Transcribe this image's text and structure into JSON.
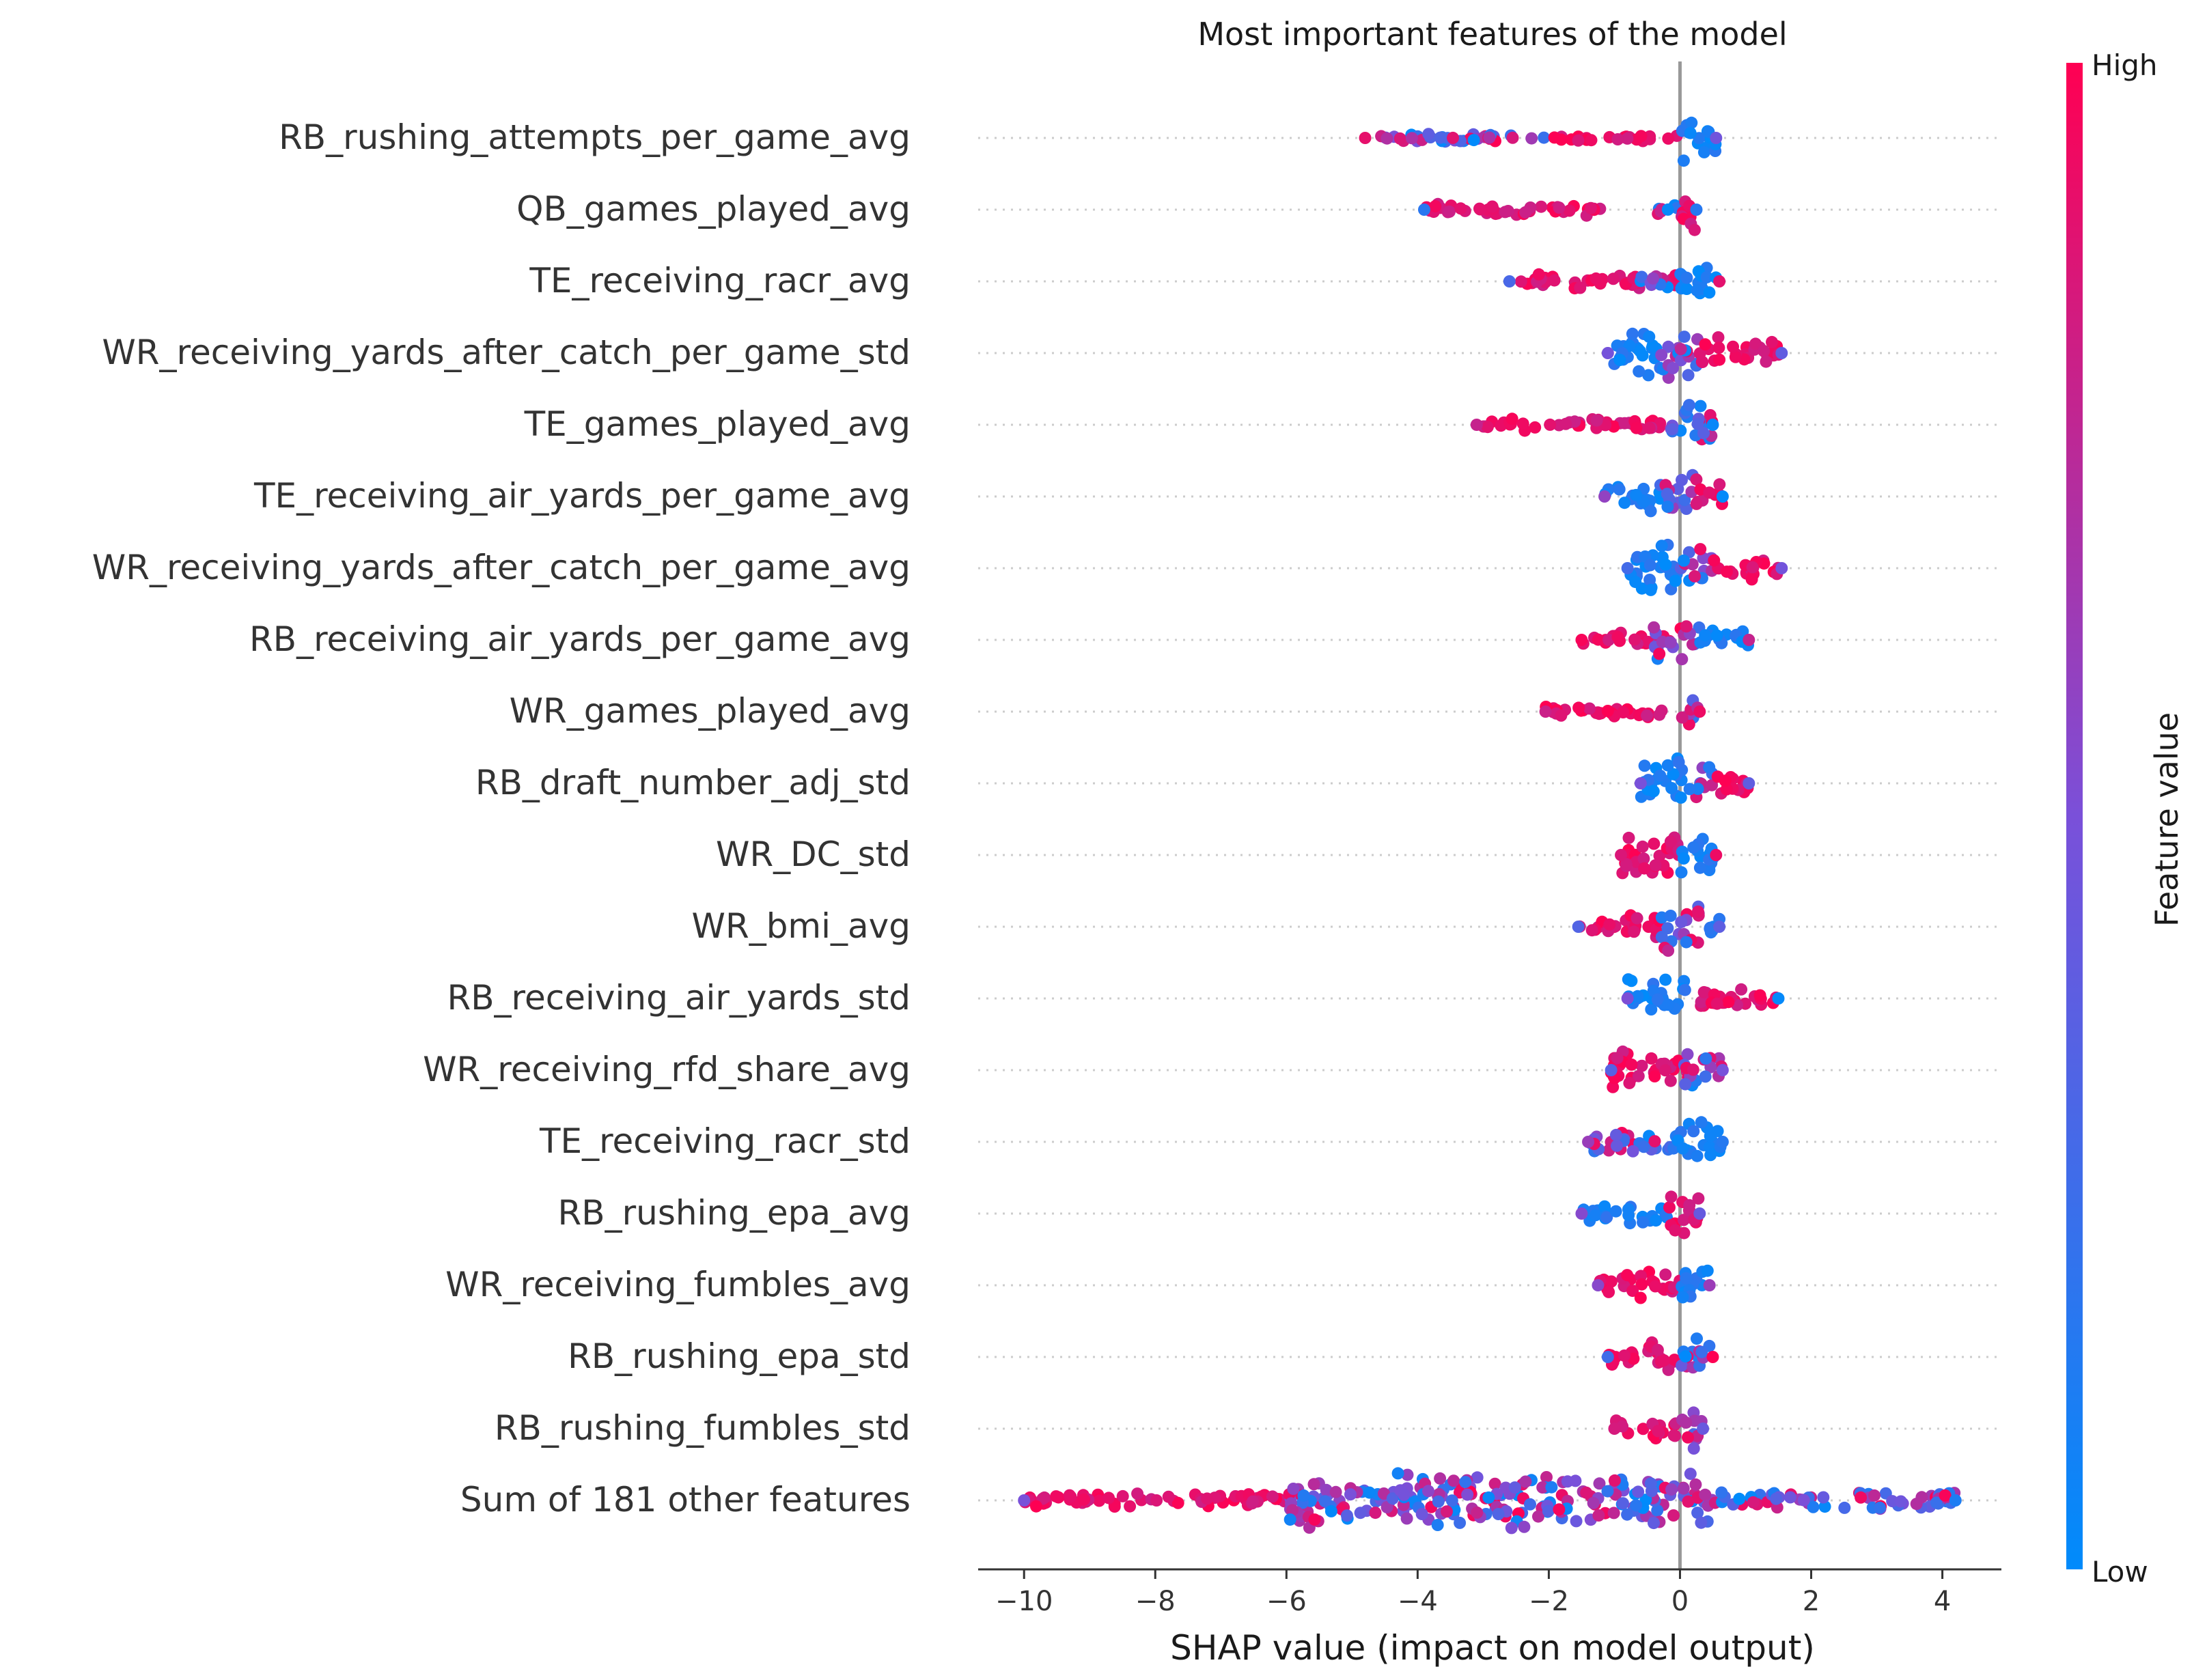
{
  "chart_data": {
    "type": "scatter",
    "subtype": "shap-beeswarm",
    "title": "Most important features of the model",
    "xlabel": "SHAP value (impact on model output)",
    "xlim": [
      -10.7,
      4.9
    ],
    "xticks": [
      -10,
      -8,
      -6,
      -4,
      -2,
      0,
      2,
      4
    ],
    "xtick_labels": [
      "−10",
      "−8",
      "−6",
      "−4",
      "−2",
      "0",
      "2",
      "4"
    ],
    "colorbar": {
      "label": "Feature value",
      "high_label": "High",
      "low_label": "Low",
      "high_color": "#ff0052",
      "low_color": "#008bfb"
    },
    "features": [
      {
        "name": "RB_rushing_attempts_per_game_avg",
        "min": -4.8,
        "max": 0.55,
        "segments": [
          [
            -4.8,
            -2.0,
            0.18,
            "mix"
          ],
          [
            -2.0,
            0.0,
            0.12,
            "high"
          ],
          [
            0.0,
            0.55,
            0.9,
            "low"
          ]
        ]
      },
      {
        "name": "QB_games_played_avg",
        "min": -3.9,
        "max": 0.25,
        "segments": [
          [
            -3.9,
            -1.2,
            0.22,
            "high"
          ],
          [
            -0.5,
            0.0,
            0.2,
            "mix"
          ],
          [
            0.0,
            0.25,
            0.8,
            "high"
          ]
        ]
      },
      {
        "name": "TE_receiving_racr_avg",
        "min": -2.6,
        "max": 0.6,
        "segments": [
          [
            -2.6,
            -0.6,
            0.25,
            "high"
          ],
          [
            -0.6,
            0.0,
            0.4,
            "mix"
          ],
          [
            0.0,
            0.6,
            0.7,
            "low"
          ]
        ]
      },
      {
        "name": "WR_receiving_yards_after_catch_per_game_std",
        "min": -1.1,
        "max": 1.55,
        "segments": [
          [
            -1.1,
            -0.3,
            0.9,
            "low"
          ],
          [
            -0.3,
            0.3,
            0.9,
            "mix"
          ],
          [
            0.3,
            1.55,
            0.55,
            "high"
          ]
        ]
      },
      {
        "name": "TE_games_played_avg",
        "min": -3.1,
        "max": 0.5,
        "segments": [
          [
            -3.1,
            -0.2,
            0.22,
            "high"
          ],
          [
            -0.2,
            0.5,
            0.8,
            "mix"
          ]
        ]
      },
      {
        "name": "TE_receiving_air_yards_per_game_avg",
        "min": -1.15,
        "max": 0.65,
        "segments": [
          [
            -1.15,
            -0.3,
            0.6,
            "low"
          ],
          [
            -0.3,
            0.2,
            0.85,
            "mix"
          ],
          [
            0.2,
            0.65,
            0.6,
            "high"
          ]
        ]
      },
      {
        "name": "WR_receiving_yards_after_catch_per_game_avg",
        "min": -0.8,
        "max": 1.55,
        "segments": [
          [
            -0.8,
            0.0,
            0.9,
            "low"
          ],
          [
            0.0,
            0.5,
            0.8,
            "mix"
          ],
          [
            0.5,
            1.55,
            0.45,
            "high"
          ]
        ]
      },
      {
        "name": "RB_receiving_air_yards_per_game_avg",
        "min": -1.5,
        "max": 1.05,
        "segments": [
          [
            -1.5,
            -0.4,
            0.3,
            "high"
          ],
          [
            -0.4,
            0.3,
            0.9,
            "mix"
          ],
          [
            0.3,
            1.05,
            0.4,
            "low"
          ]
        ]
      },
      {
        "name": "WR_games_played_avg",
        "min": -2.05,
        "max": 0.3,
        "segments": [
          [
            -2.05,
            0.0,
            0.22,
            "high"
          ],
          [
            0.0,
            0.3,
            0.5,
            "mix"
          ]
        ]
      },
      {
        "name": "RB_draft_number_adj_std",
        "min": -0.6,
        "max": 1.05,
        "segments": [
          [
            -0.6,
            0.1,
            0.9,
            "low"
          ],
          [
            0.1,
            0.5,
            0.6,
            "mix"
          ],
          [
            0.5,
            1.05,
            0.45,
            "high"
          ]
        ]
      },
      {
        "name": "WR_DC_std",
        "min": -0.9,
        "max": 0.55,
        "segments": [
          [
            -0.9,
            0.0,
            0.9,
            "high"
          ],
          [
            0.0,
            0.55,
            0.8,
            "low"
          ]
        ]
      },
      {
        "name": "WR_bmi_avg",
        "min": -1.55,
        "max": 0.6,
        "segments": [
          [
            -1.55,
            -0.3,
            0.4,
            "high"
          ],
          [
            -0.3,
            0.3,
            0.9,
            "mix"
          ],
          [
            0.3,
            0.6,
            0.4,
            "low"
          ]
        ]
      },
      {
        "name": "RB_receiving_air_yards_std",
        "min": -0.8,
        "max": 1.5,
        "segments": [
          [
            -0.8,
            0.1,
            0.8,
            "low"
          ],
          [
            0.1,
            1.5,
            0.35,
            "high"
          ]
        ]
      },
      {
        "name": "WR_receiving_rfd_share_avg",
        "min": -1.05,
        "max": 0.65,
        "segments": [
          [
            -1.05,
            0.0,
            0.75,
            "high"
          ],
          [
            0.0,
            0.65,
            0.8,
            "mix"
          ]
        ]
      },
      {
        "name": "TE_receiving_racr_std",
        "min": -1.4,
        "max": 0.65,
        "segments": [
          [
            -1.4,
            -0.1,
            0.4,
            "mix"
          ],
          [
            -0.1,
            0.65,
            0.8,
            "low"
          ]
        ]
      },
      {
        "name": "RB_rushing_epa_avg",
        "min": -1.5,
        "max": 0.3,
        "segments": [
          [
            -1.5,
            -0.2,
            0.35,
            "low"
          ],
          [
            -0.2,
            0.3,
            0.8,
            "high"
          ]
        ]
      },
      {
        "name": "WR_receiving_fumbles_avg",
        "min": -1.25,
        "max": 0.45,
        "segments": [
          [
            -1.25,
            0.0,
            0.5,
            "high"
          ],
          [
            0.0,
            0.45,
            0.75,
            "low"
          ]
        ]
      },
      {
        "name": "RB_rushing_epa_std",
        "min": -1.1,
        "max": 0.5,
        "segments": [
          [
            -1.1,
            0.0,
            0.5,
            "high"
          ],
          [
            0.0,
            0.5,
            0.8,
            "mix"
          ]
        ]
      },
      {
        "name": "RB_rushing_fumbles_std",
        "min": -1.0,
        "max": 0.35,
        "segments": [
          [
            -1.0,
            0.0,
            0.4,
            "high"
          ],
          [
            0.0,
            0.35,
            0.8,
            "mix"
          ]
        ]
      },
      {
        "name": "Sum of 181 other features",
        "min": -10.0,
        "max": 4.2,
        "segments": [
          [
            -10.0,
            -6.0,
            0.25,
            "high"
          ],
          [
            -6.0,
            0.5,
            1.0,
            "mix"
          ],
          [
            0.5,
            4.2,
            0.35,
            "mix"
          ]
        ]
      }
    ]
  }
}
